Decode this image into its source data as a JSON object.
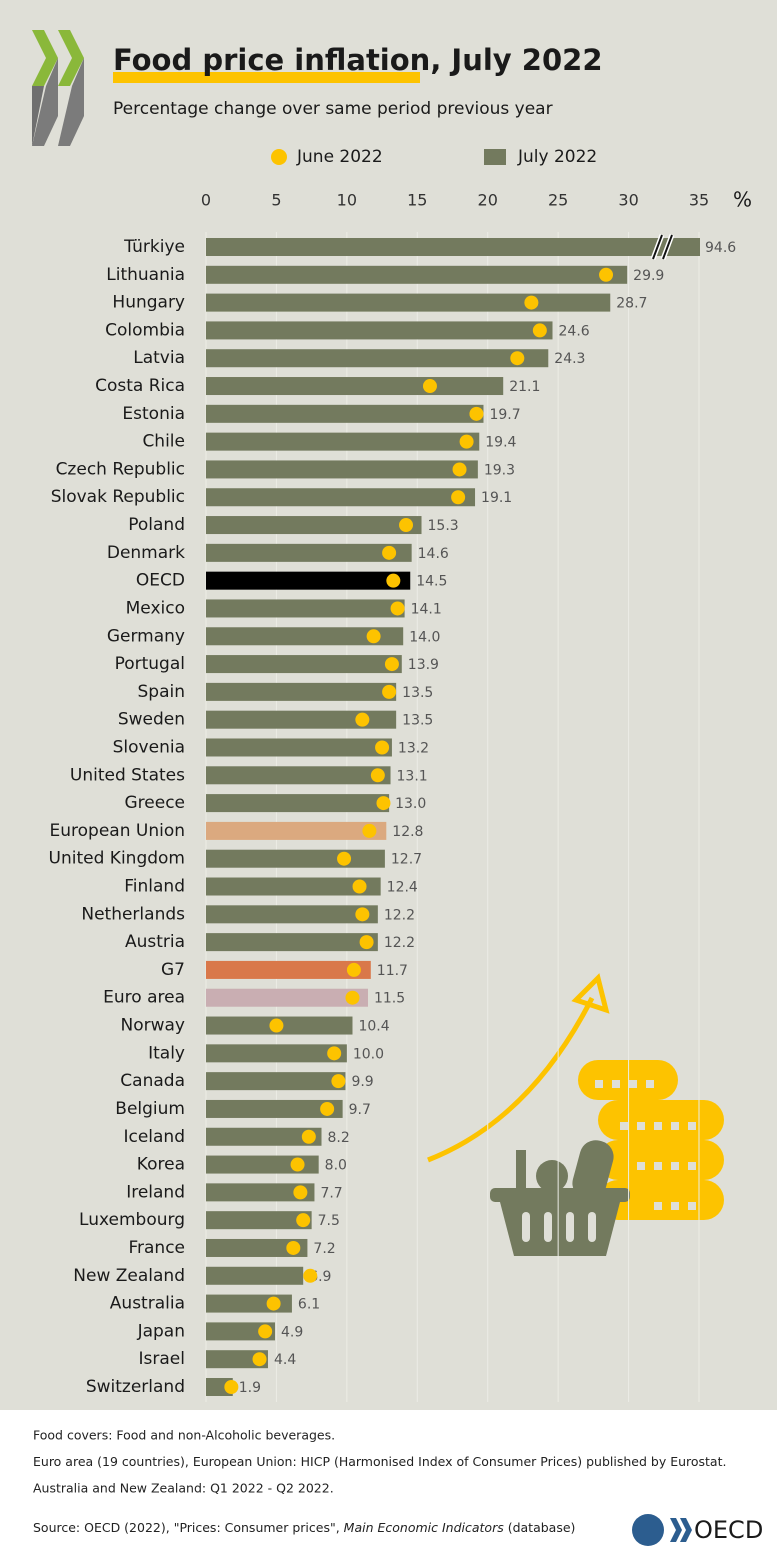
{
  "chart_data": {
    "type": "bar",
    "orientation": "horizontal",
    "title": "Food price inflation, July 2022",
    "subtitle": "Percentage change over same period previous year",
    "x_unit": "%",
    "categories": [
      "Türkiye",
      "Lithuania",
      "Hungary",
      "Colombia",
      "Latvia",
      "Costa Rica",
      "Estonia",
      "Chile",
      "Czech Republic",
      "Slovak Republic",
      "Poland",
      "Denmark",
      "OECD",
      "Mexico",
      "Germany",
      "Portugal",
      "Spain",
      "Sweden",
      "Slovenia",
      "United States",
      "Greece",
      "European Union",
      "United Kingdom",
      "Finland",
      "Netherlands",
      "Austria",
      "G7",
      "Euro area",
      "Norway",
      "Italy",
      "Canada",
      "Belgium",
      "Iceland",
      "Korea",
      "Ireland",
      "Luxembourg",
      "France",
      "New Zealand",
      "Australia",
      "Japan",
      "Israel",
      "Switzerland"
    ],
    "series": [
      {
        "name": "June 2022",
        "color": "#fdc300",
        "marker": "dot",
        "values": [
          null,
          28.4,
          23.1,
          23.7,
          22.1,
          15.9,
          19.2,
          18.5,
          18.0,
          17.9,
          14.2,
          13.0,
          13.3,
          13.6,
          11.9,
          13.2,
          13.0,
          11.1,
          12.5,
          12.2,
          12.6,
          11.6,
          9.8,
          10.9,
          11.1,
          11.4,
          10.5,
          10.4,
          5.0,
          9.1,
          9.4,
          8.6,
          7.3,
          6.5,
          6.7,
          6.9,
          6.2,
          7.4,
          4.8,
          4.2,
          3.8,
          1.8
        ]
      },
      {
        "name": "July 2022",
        "color": "#737a5e",
        "marker": "bar",
        "colors": [
          "#737a5e",
          "#737a5e",
          "#737a5e",
          "#737a5e",
          "#737a5e",
          "#737a5e",
          "#737a5e",
          "#737a5e",
          "#737a5e",
          "#737a5e",
          "#737a5e",
          "#737a5e",
          "#000000",
          "#737a5e",
          "#737a5e",
          "#737a5e",
          "#737a5e",
          "#737a5e",
          "#737a5e",
          "#737a5e",
          "#737a5e",
          "#dba97f",
          "#737a5e",
          "#737a5e",
          "#737a5e",
          "#737a5e",
          "#d9784a",
          "#c9aeb2",
          "#737a5e",
          "#737a5e",
          "#737a5e",
          "#737a5e",
          "#737a5e",
          "#737a5e",
          "#737a5e",
          "#737a5e",
          "#737a5e",
          "#737a5e",
          "#737a5e",
          "#737a5e",
          "#737a5e",
          "#737a5e"
        ],
        "values": [
          94.6,
          29.9,
          28.7,
          24.6,
          24.3,
          21.1,
          19.7,
          19.4,
          19.3,
          19.1,
          15.3,
          14.6,
          14.5,
          14.1,
          14.0,
          13.9,
          13.5,
          13.5,
          13.2,
          13.1,
          13.0,
          12.8,
          12.7,
          12.4,
          12.2,
          12.2,
          11.7,
          11.5,
          10.4,
          10.0,
          9.9,
          9.7,
          8.2,
          8.0,
          7.7,
          7.5,
          7.2,
          6.9,
          6.1,
          4.9,
          4.4,
          1.9
        ],
        "value_labels": [
          "94.6",
          "29.9",
          "28.7",
          "24.6",
          "24.3",
          "21.1",
          "19.7",
          "19.4",
          "19.3",
          "19.1",
          "15.3",
          "14.6",
          "14.5",
          "14.1",
          "14.0",
          "13.9",
          "13.5",
          "13.5",
          "13.2",
          "13.1",
          "13.0",
          "12.8",
          "12.7",
          "12.4",
          "12.2",
          "12.2",
          "11.7",
          "11.5",
          "10.4",
          "10.0",
          "9.9",
          "9.7",
          "8.2",
          "8.0",
          "7.7",
          "7.5",
          "7.2",
          "6.9",
          "6.1",
          "4.9",
          "4.4",
          "1.9"
        ]
      }
    ],
    "xlim": [
      0,
      35
    ],
    "xticks": [
      0,
      5,
      10,
      15,
      20,
      25,
      30,
      35
    ],
    "grid": true,
    "axis_break": true,
    "notes": [
      "Food covers: Food and non-Alcoholic beverages.",
      "Euro area (19 countries), European Union: HICP (Harmonised Index of Consumer Prices) published by Eurostat.",
      "Australia and New Zealand:  Q1 2022 - Q2 2022."
    ],
    "source": [
      "Source: OECD (2022), \"Prices: Consumer prices\", ",
      "Main Economic Indicators",
      " (database)"
    ],
    "logo_text": "OECD"
  }
}
